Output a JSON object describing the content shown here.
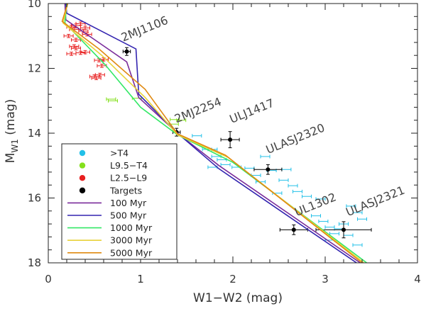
{
  "chart_data": {
    "type": "scatter",
    "title": "",
    "xlabel": "W1−W2 (mag)",
    "ylabel": "M",
    "ylabel_sub": "W1",
    "ylabel_units": " (mag)",
    "xlim": [
      0,
      4
    ],
    "ylim": [
      18,
      10
    ],
    "y_inverted": true,
    "x_ticks": [
      0,
      1,
      2,
      3,
      4
    ],
    "x_tick_labels": [
      "0",
      "1",
      "2",
      "3",
      "4"
    ],
    "y_ticks": [
      10,
      12,
      14,
      16,
      18
    ],
    "y_tick_labels": [
      "10",
      "12",
      "14",
      "16",
      "18"
    ],
    "legend_position": "bottom-left",
    "series": [
      {
        "name": ">T4",
        "kind": "points",
        "color": "#22c0e8",
        "points": [
          [
            1.61,
            14.08,
            0.05,
            0.0
          ],
          [
            1.72,
            14.5,
            0.05,
            0.0
          ],
          [
            1.78,
            14.5,
            0.05,
            0.0
          ],
          [
            1.82,
            14.72,
            0.05,
            0.0
          ],
          [
            1.88,
            14.82,
            0.05,
            0.0
          ],
          [
            1.78,
            15.05,
            0.05,
            0.0
          ],
          [
            1.92,
            14.97,
            0.05,
            0.0
          ],
          [
            2.04,
            15.05,
            0.05,
            0.0
          ],
          [
            2.18,
            15.08,
            0.05,
            0.0
          ],
          [
            2.35,
            14.72,
            0.05,
            0.0
          ],
          [
            2.42,
            15.15,
            0.05,
            0.0
          ],
          [
            2.58,
            15.12,
            0.05,
            0.0
          ],
          [
            2.25,
            15.3,
            0.05,
            0.0
          ],
          [
            2.3,
            15.5,
            0.05,
            0.0
          ],
          [
            2.55,
            15.45,
            0.05,
            0.0
          ],
          [
            2.65,
            15.62,
            0.05,
            0.0
          ],
          [
            2.48,
            15.85,
            0.05,
            0.0
          ],
          [
            2.7,
            15.8,
            0.05,
            0.0
          ],
          [
            2.8,
            15.95,
            0.05,
            0.0
          ],
          [
            2.95,
            16.03,
            0.05,
            0.0
          ],
          [
            2.9,
            16.55,
            0.05,
            0.0
          ],
          [
            2.98,
            16.72,
            0.05,
            0.0
          ],
          [
            3.05,
            16.9,
            0.05,
            0.0
          ],
          [
            3.15,
            16.95,
            0.05,
            0.0
          ],
          [
            3.1,
            17.1,
            0.05,
            0.0
          ],
          [
            3.25,
            17.15,
            0.05,
            0.0
          ],
          [
            3.05,
            17.3,
            0.05,
            0.0
          ],
          [
            3.35,
            16.45,
            0.05,
            0.0
          ],
          [
            3.4,
            16.65,
            0.05,
            0.0
          ],
          [
            3.35,
            17.45,
            0.05,
            0.0
          ],
          [
            3.28,
            16.25,
            0.05,
            0.0
          ],
          [
            3.2,
            16.8,
            0.05,
            0.0
          ]
        ]
      },
      {
        "name": "L9.5−T4",
        "kind": "points",
        "color": "#84e01c",
        "points": [
          [
            0.68,
            12.95,
            0.05,
            0.0
          ],
          [
            0.7,
            13.0,
            0.05,
            0.0
          ],
          [
            0.96,
            12.92,
            0.05,
            0.0
          ],
          [
            1.36,
            13.72,
            0.05,
            0.0
          ],
          [
            1.37,
            13.58,
            0.05,
            0.0
          ],
          [
            1.44,
            13.6,
            0.05,
            0.0
          ]
        ]
      },
      {
        "name": "L2.5−L9",
        "kind": "points",
        "color": "#e82020",
        "points": [
          [
            0.25,
            10.72,
            0.05,
            0.05
          ],
          [
            0.3,
            10.68,
            0.05,
            0.05
          ],
          [
            0.35,
            10.62,
            0.05,
            0.05
          ],
          [
            0.28,
            10.8,
            0.05,
            0.05
          ],
          [
            0.4,
            10.75,
            0.05,
            0.05
          ],
          [
            0.42,
            10.95,
            0.05,
            0.05
          ],
          [
            0.22,
            11.0,
            0.05,
            0.05
          ],
          [
            0.3,
            11.12,
            0.05,
            0.05
          ],
          [
            0.28,
            11.32,
            0.05,
            0.05
          ],
          [
            0.3,
            11.38,
            0.05,
            0.05
          ],
          [
            0.35,
            11.52,
            0.05,
            0.05
          ],
          [
            0.4,
            11.5,
            0.05,
            0.05
          ],
          [
            0.25,
            11.55,
            0.05,
            0.05
          ],
          [
            0.55,
            11.75,
            0.05,
            0.05
          ],
          [
            0.6,
            11.72,
            0.05,
            0.05
          ],
          [
            0.58,
            11.92,
            0.05,
            0.05
          ],
          [
            0.5,
            12.25,
            0.05,
            0.05
          ],
          [
            0.56,
            12.2,
            0.05,
            0.05
          ],
          [
            0.52,
            12.3,
            0.05,
            0.05
          ],
          [
            0.38,
            10.85,
            0.05,
            0.05
          ]
        ]
      },
      {
        "name": "Targets",
        "kind": "points",
        "color": "#000000",
        "points": [
          [
            0.85,
            11.48,
            0.04,
            0.12
          ],
          [
            1.39,
            13.97,
            0.04,
            0.12
          ],
          [
            1.97,
            14.2,
            0.1,
            0.25
          ],
          [
            2.38,
            15.12,
            0.15,
            0.15
          ],
          [
            2.66,
            16.98,
            0.15,
            0.15
          ],
          [
            3.2,
            16.98,
            0.3,
            0.25
          ]
        ]
      },
      {
        "name": "100 Myr",
        "kind": "line",
        "color": "#7a2b9a",
        "points": [
          [
            0.18,
            10.0
          ],
          [
            0.19,
            10.5
          ],
          [
            0.85,
            11.8
          ],
          [
            0.98,
            12.9
          ],
          [
            1.4,
            14.0
          ],
          [
            1.85,
            15.0
          ],
          [
            3.38,
            18.0
          ]
        ]
      },
      {
        "name": "500 Myr",
        "kind": "line",
        "color": "#3324b0",
        "points": [
          [
            0.19,
            10.0
          ],
          [
            0.2,
            10.3
          ],
          [
            0.95,
            11.4
          ],
          [
            0.98,
            12.8
          ],
          [
            1.4,
            14.0
          ],
          [
            1.85,
            15.1
          ],
          [
            3.34,
            18.0
          ]
        ]
      },
      {
        "name": "1000 Myr",
        "kind": "line",
        "color": "#33e866",
        "points": [
          [
            0.2,
            10.0
          ],
          [
            0.18,
            10.6
          ],
          [
            0.62,
            11.9
          ],
          [
            1.0,
            13.2
          ],
          [
            1.4,
            14.05
          ],
          [
            2.0,
            14.9
          ],
          [
            3.45,
            18.0
          ]
        ]
      },
      {
        "name": "3000 Myr",
        "kind": "line",
        "color": "#e8d23a",
        "points": [
          [
            0.21,
            10.0
          ],
          [
            0.16,
            10.6
          ],
          [
            0.58,
            11.6
          ],
          [
            1.05,
            12.9
          ],
          [
            1.4,
            14.05
          ],
          [
            1.95,
            14.75
          ],
          [
            3.42,
            18.0
          ]
        ]
      },
      {
        "name": "5000 Myr",
        "kind": "line",
        "color": "#e08a12",
        "points": [
          [
            0.21,
            10.0
          ],
          [
            0.15,
            10.55
          ],
          [
            0.55,
            11.4
          ],
          [
            1.05,
            12.65
          ],
          [
            1.4,
            14.02
          ],
          [
            1.92,
            14.68
          ],
          [
            3.4,
            18.0
          ]
        ]
      }
    ],
    "annotations": [
      {
        "text": "2MJ1106",
        "x": 0.85,
        "y": 11.48
      },
      {
        "text": "2MJ2254",
        "x": 1.39,
        "y": 13.97
      },
      {
        "text": "ULJ1417",
        "x": 1.97,
        "y": 14.2
      },
      {
        "text": "ULASJ2320",
        "x": 2.38,
        "y": 15.12
      },
      {
        "text": "UL1302",
        "x": 2.66,
        "y": 16.98
      },
      {
        "text": "ULASJ2321",
        "x": 3.2,
        "y": 16.98
      }
    ]
  }
}
